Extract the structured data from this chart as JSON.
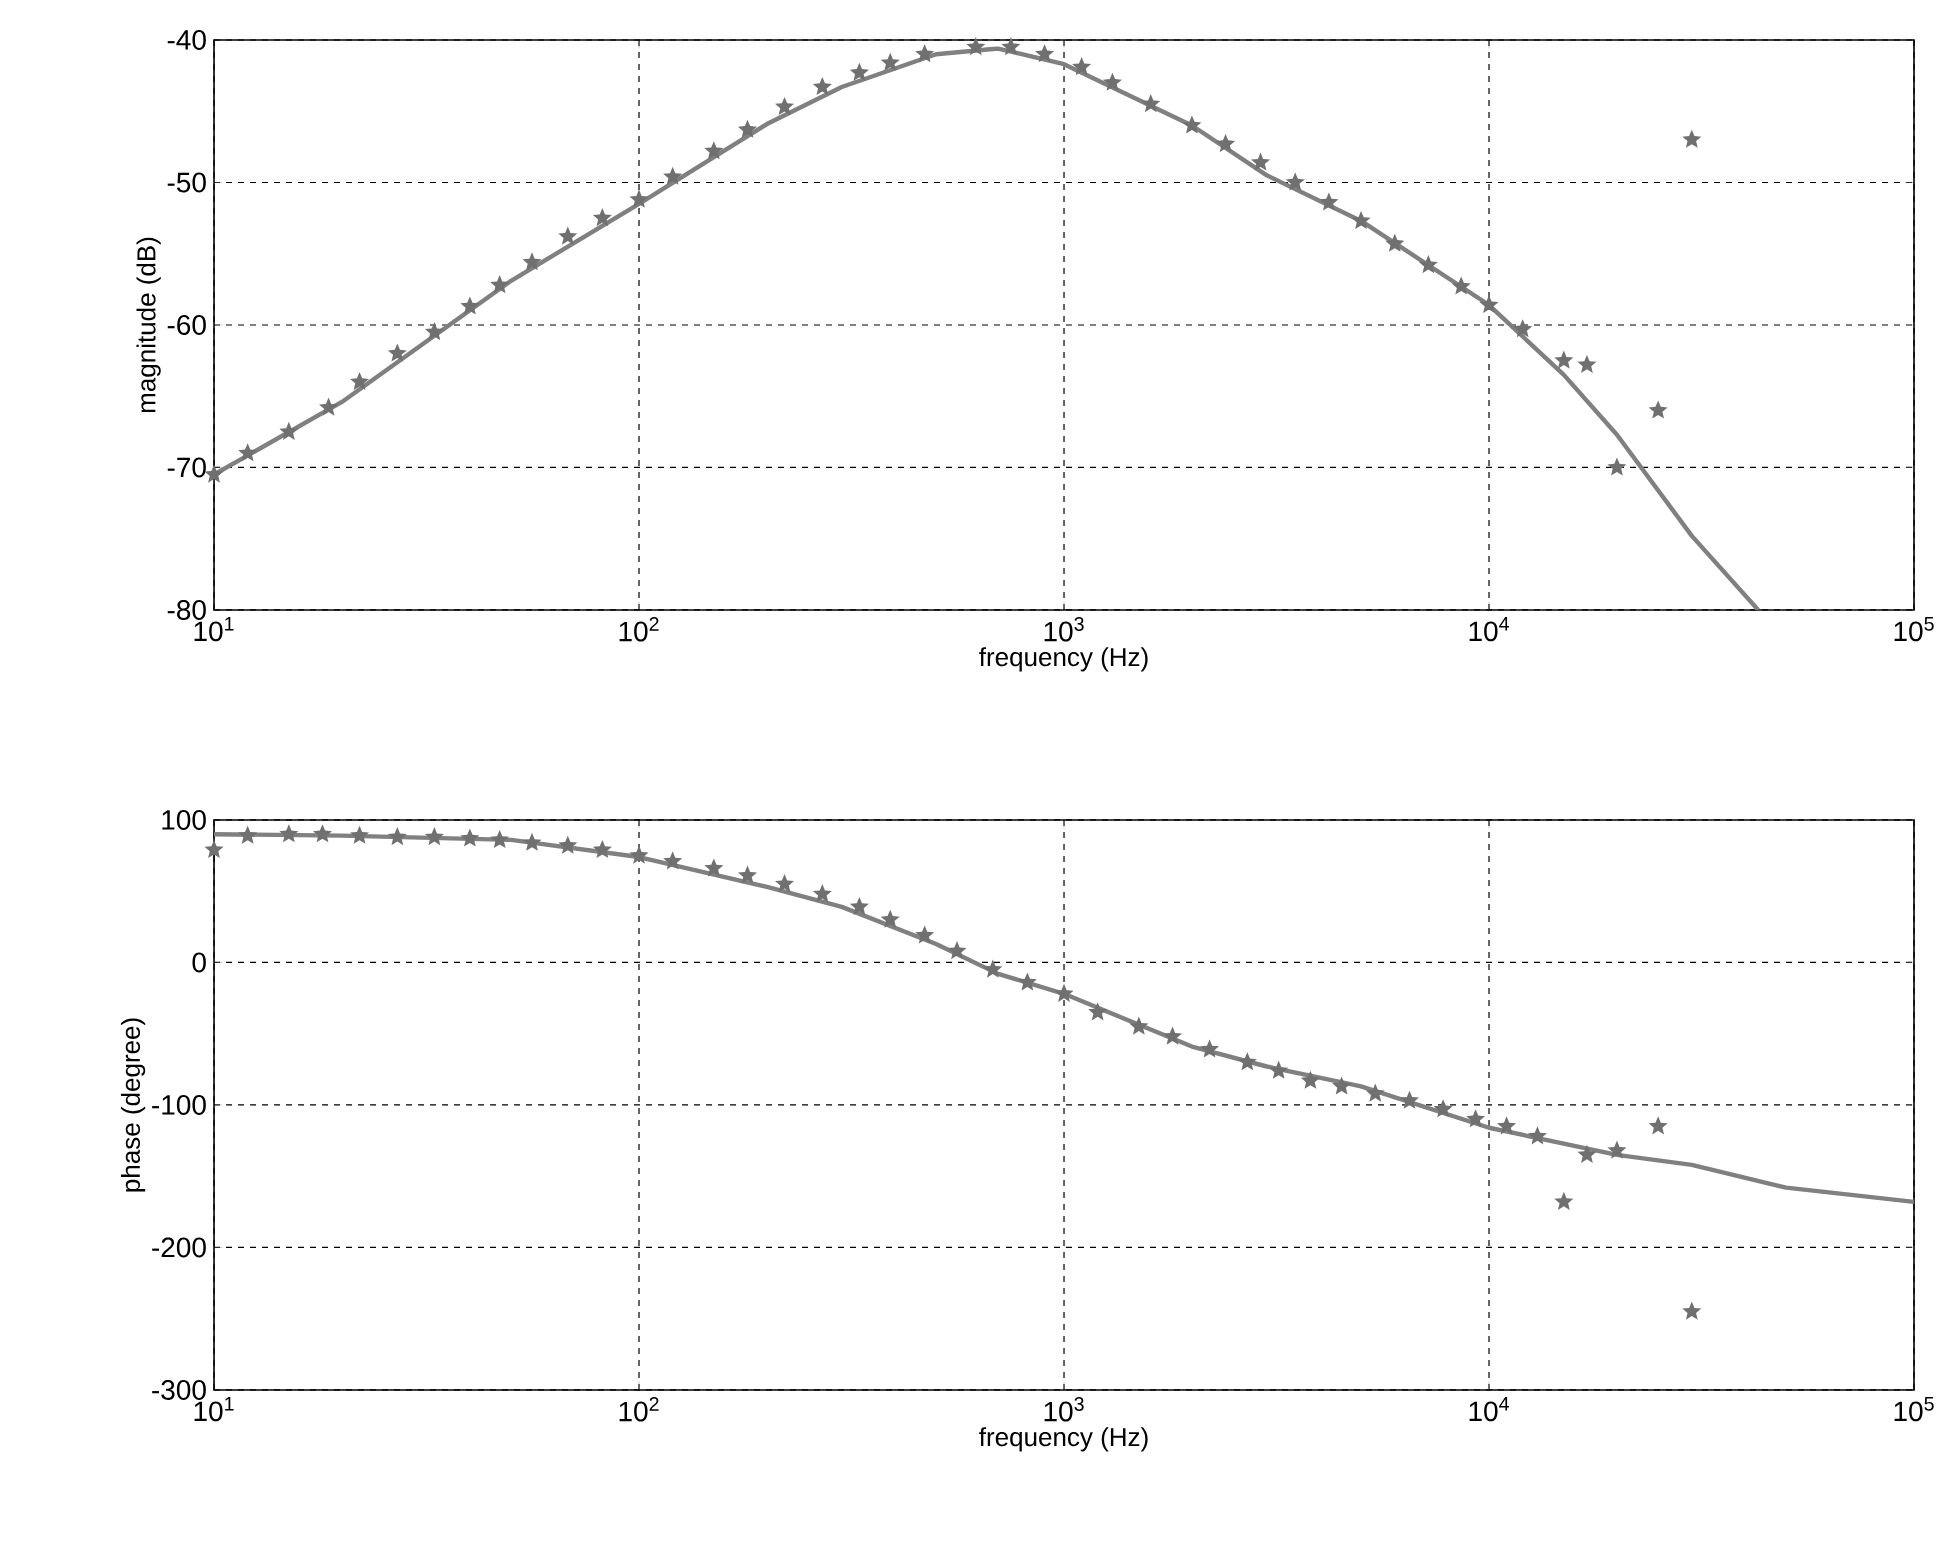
{
  "chart_data": [
    {
      "type": "line",
      "xlabel": "frequency (Hz)",
      "ylabel": "magnitude (dB)",
      "log": "x",
      "grid": true,
      "xlim": [
        10,
        100000
      ],
      "ylim": [
        -80,
        -40
      ],
      "xticks": [
        {
          "value": 10,
          "label": "10$^{1}$"
        },
        {
          "value": 100,
          "label": "10$^{2}$"
        },
        {
          "value": 1000,
          "label": "10$^{3}$"
        },
        {
          "value": 10000,
          "label": "10$^{4}$"
        },
        {
          "value": 100000,
          "label": "10$^{5}$"
        }
      ],
      "yticks": [
        -80,
        -70,
        -60,
        -50,
        -40
      ],
      "series": [
        {
          "type": "line",
          "color": "#808080",
          "marker": "none",
          "line_style": "solid",
          "x": [
            10,
            20,
            50,
            100,
            200,
            300,
            500,
            700,
            1000,
            2000,
            3000,
            5000,
            10000,
            15000,
            20000,
            30000,
            43000
          ],
          "values": [
            -70.5,
            -65.4,
            -56.9,
            -51.5,
            -45.9,
            -43.3,
            -41,
            -40.6,
            -41.7,
            -46,
            -49.5,
            -52.7,
            -58.6,
            -63.5,
            -67.7,
            -74.8,
            -80
          ]
        },
        {
          "type": "scatter",
          "color": "#707070",
          "marker": "star",
          "x": [
            10,
            12,
            15,
            18.6,
            22,
            27,
            33,
            40,
            47,
            56,
            68,
            82,
            100,
            120,
            150,
            180,
            220,
            270,
            330,
            390,
            470,
            620,
            750,
            900,
            1100,
            1300,
            1600,
            2000,
            2400,
            2900,
            3500,
            4200,
            5000,
            6000,
            7200,
            8600,
            10000,
            12000,
            15000,
            17000,
            20000,
            25000,
            30000
          ],
          "values": [
            -70.5,
            -69,
            -67.5,
            -65.8,
            -64,
            -62,
            -60.5,
            -58.7,
            -57.2,
            -55.6,
            -53.8,
            -52.5,
            -51.2,
            -49.6,
            -47.8,
            -46.3,
            -44.7,
            -43.3,
            -42.3,
            -41.6,
            -41,
            -40.5,
            -40.5,
            -41,
            -41.9,
            -43,
            -44.5,
            -46,
            -47.3,
            -48.6,
            -50,
            -51.4,
            -52.7,
            -54.3,
            -55.8,
            -57.3,
            -58.6,
            -60.3,
            -62.5,
            -62.8,
            -70,
            -66,
            -47
          ]
        }
      ]
    },
    {
      "type": "line",
      "xlabel": "frequency (Hz)",
      "ylabel": "phase (degree)",
      "log": "x",
      "grid": true,
      "xlim": [
        10,
        100000
      ],
      "ylim": [
        -300,
        100
      ],
      "xticks": [
        {
          "value": 10,
          "label": "10$^{1}$"
        },
        {
          "value": 100,
          "label": "10$^{2}$"
        },
        {
          "value": 1000,
          "label": "10$^{3}$"
        },
        {
          "value": 10000,
          "label": "10$^{4}$"
        },
        {
          "value": 100000,
          "label": "10$^{5}$"
        }
      ],
      "yticks": [
        -300,
        -200,
        -100,
        0,
        100
      ],
      "series": [
        {
          "type": "line",
          "color": "#808080",
          "marker": "none",
          "line_style": "solid",
          "x": [
            10,
            20,
            50,
            100,
            200,
            300,
            500,
            700,
            1000,
            2000,
            3000,
            5000,
            10000,
            20000,
            30000,
            50000,
            100000
          ],
          "values": [
            90,
            89,
            86,
            74,
            53,
            39,
            13,
            -8,
            -22,
            -59,
            -73,
            -87,
            -116,
            -135,
            -142,
            -158,
            -168
          ]
        },
        {
          "type": "scatter",
          "color": "#707070",
          "marker": "star",
          "x": [
            10,
            12,
            15,
            18,
            22,
            27,
            33,
            40,
            47,
            56,
            68,
            82,
            100,
            120,
            150,
            180,
            220,
            270,
            330,
            390,
            470,
            560,
            680,
            820,
            1000,
            1200,
            1500,
            1800,
            2200,
            2700,
            3200,
            3800,
            4500,
            5400,
            6500,
            7800,
            9300,
            11000,
            13000,
            15000,
            17000,
            20000,
            25000,
            30000
          ],
          "values": [
            79,
            89,
            90,
            90,
            89,
            88,
            88,
            87,
            86,
            84,
            82,
            79,
            75,
            71,
            66,
            61,
            55,
            48,
            39,
            30,
            19,
            8,
            -5,
            -14,
            -22,
            -35,
            -45,
            -52,
            -61,
            -70,
            -76,
            -83,
            -87,
            -92,
            -97,
            -103,
            -110,
            -115,
            -122,
            -168,
            -135,
            -132,
            -115,
            -245
          ]
        }
      ]
    }
  ]
}
